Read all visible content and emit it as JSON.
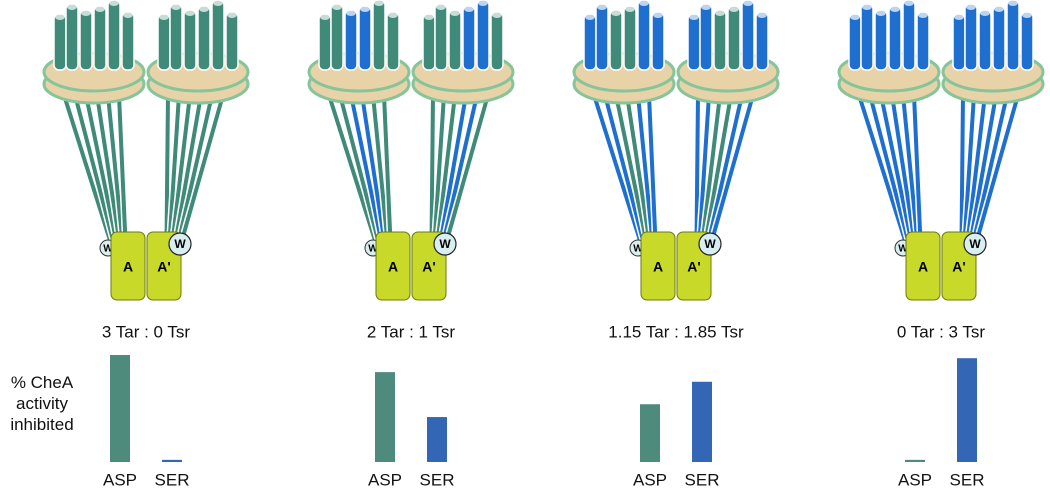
{
  "diagram": {
    "kinase": "A",
    "kinase_partner": "A'",
    "adaptor": "W"
  },
  "y_label": "% CheA activity inhibited",
  "chart_data": [
    {
      "type": "bar",
      "title": "3 Tar : 0 Tsr",
      "categories": [
        "ASP",
        "SER"
      ],
      "values": [
        100,
        2
      ],
      "colors": [
        "#4e8b7d",
        "#3366b5"
      ]
    },
    {
      "type": "bar",
      "title": "2 Tar : 1 Tsr",
      "categories": [
        "ASP",
        "SER"
      ],
      "values": [
        84,
        42
      ],
      "colors": [
        "#4e8b7d",
        "#3366b5"
      ]
    },
    {
      "type": "bar",
      "title": "1.15 Tar : 1.85 Tsr",
      "categories": [
        "ASP",
        "SER"
      ],
      "values": [
        54,
        75
      ],
      "colors": [
        "#4e8b7d",
        "#3366b5"
      ]
    },
    {
      "type": "bar",
      "title": "0 Tar : 3 Tsr",
      "categories": [
        "ASP",
        "SER"
      ],
      "values": [
        2,
        97
      ],
      "colors": [
        "#4e8b7d",
        "#3366b5"
      ]
    }
  ]
}
